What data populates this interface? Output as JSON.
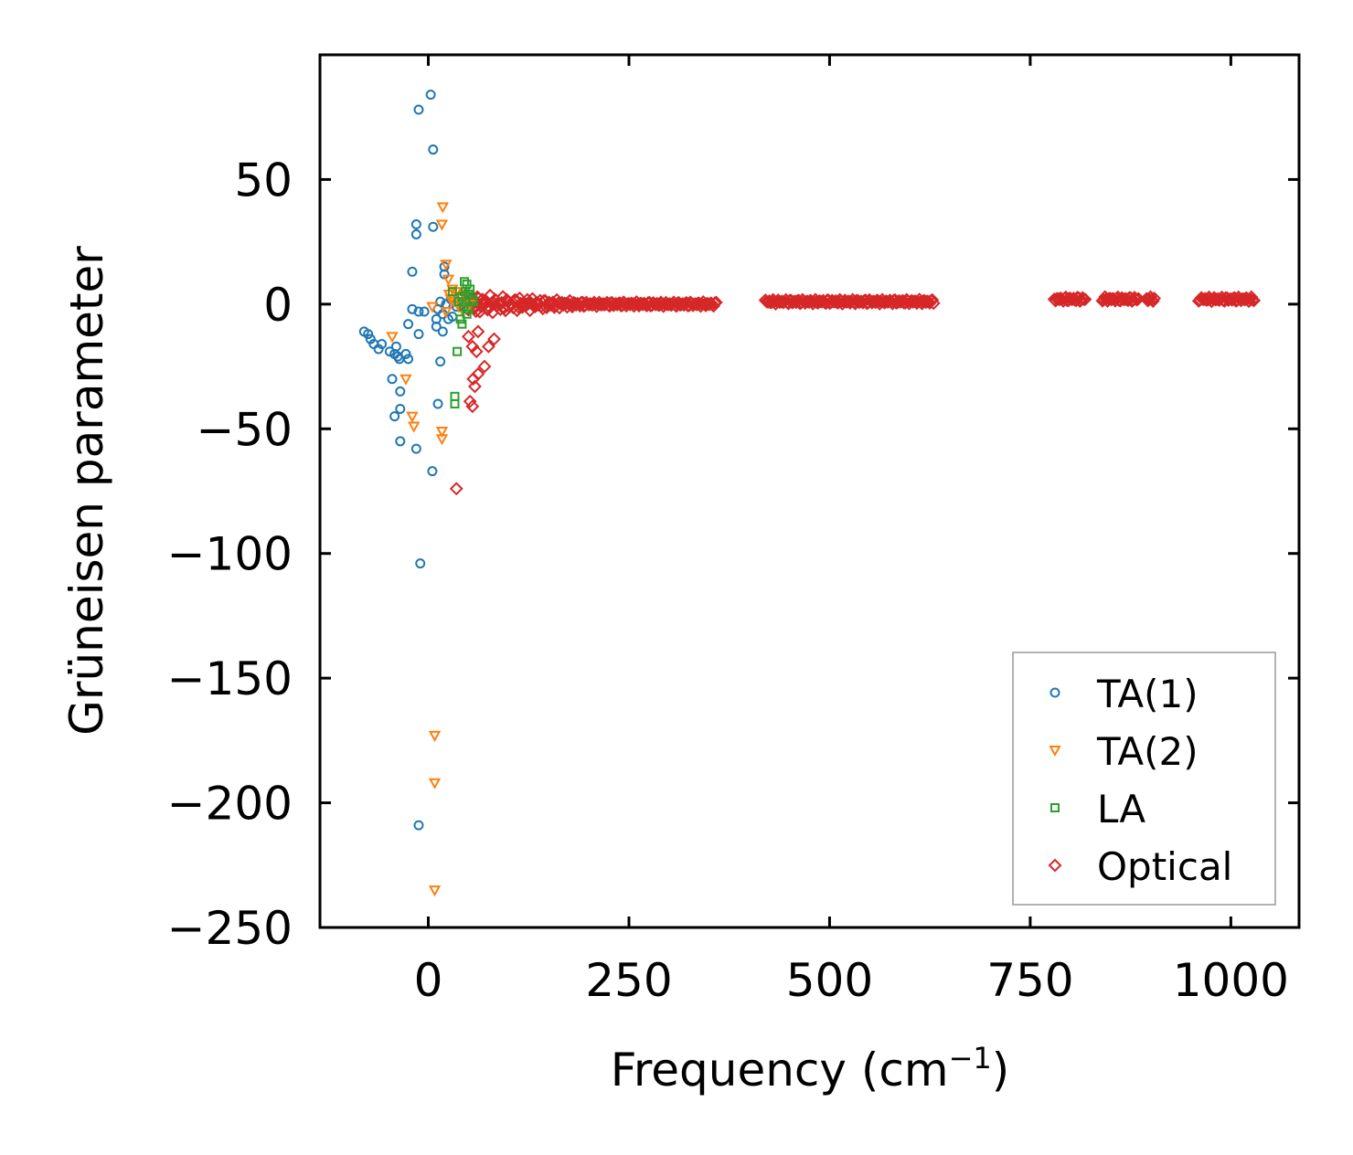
{
  "chart_data": {
    "type": "scatter",
    "xlabel": "Frequency (cm",
    "xlabel_sup": "−1",
    "xlabel_close": ")",
    "ylabel": "Grüneisen parameter",
    "xlim": [
      -135,
      1085
    ],
    "ylim": [
      -250,
      100
    ],
    "xticks": [
      0,
      250,
      500,
      750,
      1000
    ],
    "xtick_labels": [
      "0",
      "250",
      "500",
      "750",
      "1000"
    ],
    "yticks": [
      50,
      0,
      -50,
      -100,
      -150,
      -200,
      -250
    ],
    "ytick_labels": [
      "50",
      "0",
      "−50",
      "−100",
      "−150",
      "−200",
      "−250"
    ],
    "legend_position": "lower-right",
    "series": [
      {
        "name": "TA(1)",
        "marker": "circle",
        "color": "#1f77b4",
        "points": [
          [
            3,
            84
          ],
          [
            -12,
            78
          ],
          [
            6,
            62
          ],
          [
            -15,
            32
          ],
          [
            6,
            31
          ],
          [
            -15,
            28
          ],
          [
            20,
            15
          ],
          [
            -20,
            13
          ],
          [
            20,
            12
          ],
          [
            12,
            -2
          ],
          [
            -20,
            -2
          ],
          [
            -12,
            -3
          ],
          [
            18,
            -4
          ],
          [
            10,
            -6
          ],
          [
            25,
            -6
          ],
          [
            -25,
            -8
          ],
          [
            10,
            -9
          ],
          [
            18,
            -11
          ],
          [
            -12,
            -12
          ],
          [
            -80,
            -11
          ],
          [
            -75,
            -12
          ],
          [
            -72,
            -14
          ],
          [
            -68,
            -16
          ],
          [
            -58,
            -16
          ],
          [
            -62,
            -18
          ],
          [
            -40,
            -17
          ],
          [
            -48,
            -19
          ],
          [
            -42,
            -20
          ],
          [
            -38,
            -21
          ],
          [
            -28,
            -20
          ],
          [
            -25,
            -22
          ],
          [
            -36,
            -22
          ],
          [
            15,
            -23
          ],
          [
            -45,
            -30
          ],
          [
            -35,
            -35
          ],
          [
            12,
            -40
          ],
          [
            -35,
            -42
          ],
          [
            -42,
            -45
          ],
          [
            -35,
            -55
          ],
          [
            -15,
            -58
          ],
          [
            5,
            -67
          ],
          [
            -10,
            -104
          ],
          [
            -12,
            -209
          ],
          [
            22,
            0
          ],
          [
            28,
            2
          ],
          [
            15,
            1
          ],
          [
            -5,
            -3
          ],
          [
            30,
            -5
          ],
          [
            35,
            -1
          ],
          [
            42,
            0
          ]
        ]
      },
      {
        "name": "TA(2)",
        "marker": "triangle",
        "color": "#ff7f0e",
        "points": [
          [
            18,
            39
          ],
          [
            17,
            32
          ],
          [
            22,
            16
          ],
          [
            25,
            10
          ],
          [
            30,
            6
          ],
          [
            35,
            5
          ],
          [
            40,
            3
          ],
          [
            45,
            4
          ],
          [
            28,
            2
          ],
          [
            32,
            1
          ],
          [
            38,
            -1
          ],
          [
            42,
            -2
          ],
          [
            22,
            -3
          ],
          [
            5,
            -1
          ],
          [
            -28,
            -30
          ],
          [
            -20,
            -45
          ],
          [
            -18,
            -49
          ],
          [
            17,
            -51
          ],
          [
            17,
            -54
          ],
          [
            -45,
            -13
          ],
          [
            8,
            -173
          ],
          [
            8,
            -192
          ],
          [
            8,
            -235
          ],
          [
            48,
            2
          ],
          [
            52,
            0
          ],
          [
            26,
            4
          ]
        ]
      },
      {
        "name": "LA",
        "marker": "square",
        "color": "#2ca02c",
        "points": [
          [
            45,
            9
          ],
          [
            48,
            8
          ],
          [
            52,
            6
          ],
          [
            46,
            5
          ],
          [
            50,
            4
          ],
          [
            55,
            2
          ],
          [
            42,
            3
          ],
          [
            38,
            1
          ],
          [
            44,
            -1
          ],
          [
            40,
            -6
          ],
          [
            42,
            -8
          ],
          [
            36,
            -19
          ],
          [
            33,
            -37
          ],
          [
            33,
            -40
          ],
          [
            50,
            -2
          ],
          [
            56,
            1
          ],
          [
            30,
            5
          ],
          [
            48,
            -4
          ]
        ]
      },
      {
        "name": "Optical",
        "marker": "diamond",
        "color": "#d62728",
        "points": [
          [
            50,
            -13
          ],
          [
            55,
            -17
          ],
          [
            60,
            -19
          ],
          [
            62,
            -28
          ],
          [
            56,
            -30
          ],
          [
            58,
            -33
          ],
          [
            70,
            -25
          ],
          [
            52,
            -39
          ],
          [
            55,
            -41
          ],
          [
            75,
            -17
          ],
          [
            82,
            -14
          ],
          [
            62,
            -11
          ],
          [
            35,
            -74
          ]
        ]
      }
    ],
    "optical_bands": [
      {
        "x_start": 45,
        "x_end": 360,
        "y": 0
      },
      {
        "x_start": 420,
        "x_end": 630,
        "y": 1
      },
      {
        "x_start": 780,
        "x_end": 820,
        "y": 2
      },
      {
        "x_start": 840,
        "x_end": 885,
        "y": 2
      },
      {
        "x_start": 895,
        "x_end": 905,
        "y": 2
      },
      {
        "x_start": 960,
        "x_end": 1030,
        "y": 2
      }
    ]
  }
}
